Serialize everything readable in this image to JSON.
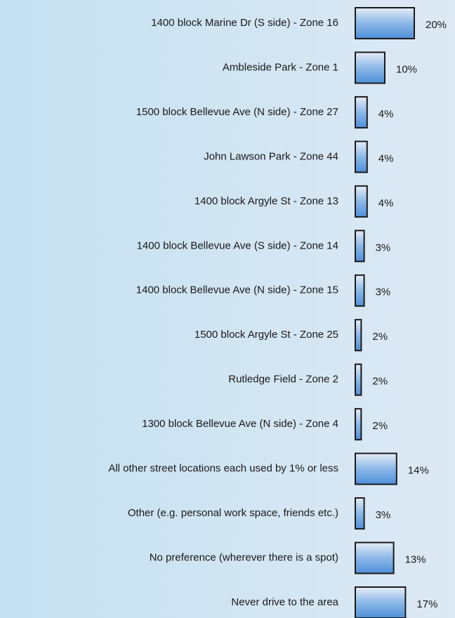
{
  "chart_data": {
    "type": "barh",
    "categories": [
      "1400 block Marine Dr (S side) - Zone 16",
      "Ambleside Park - Zone 1",
      "1500 block Bellevue Ave (N side) - Zone 27",
      "John Lawson Park - Zone 44",
      "1400 block Argyle St - Zone 13",
      "1400 block Bellevue Ave (S side) - Zone 14",
      "1400 block Bellevue Ave (N side) - Zone 15",
      "1500 block Argyle St - Zone 25",
      "Rutledge Field - Zone 2",
      "1300 block Bellevue Ave (N side) - Zone 4",
      "All other street locations each used by 1% or less",
      "Other (e.g. personal work space, friends etc.)",
      "No preference (wherever there is a spot)",
      "Never drive to the area"
    ],
    "values": [
      20,
      10,
      4,
      4,
      4,
      3,
      3,
      2,
      2,
      2,
      14,
      3,
      13,
      17
    ],
    "value_labels": [
      "20%",
      "10%",
      "4%",
      "4%",
      "4%",
      "3%",
      "3%",
      "2%",
      "2%",
      "2%",
      "14%",
      "3%",
      "13%",
      "17%"
    ],
    "color": "#8cb8e8"
  }
}
